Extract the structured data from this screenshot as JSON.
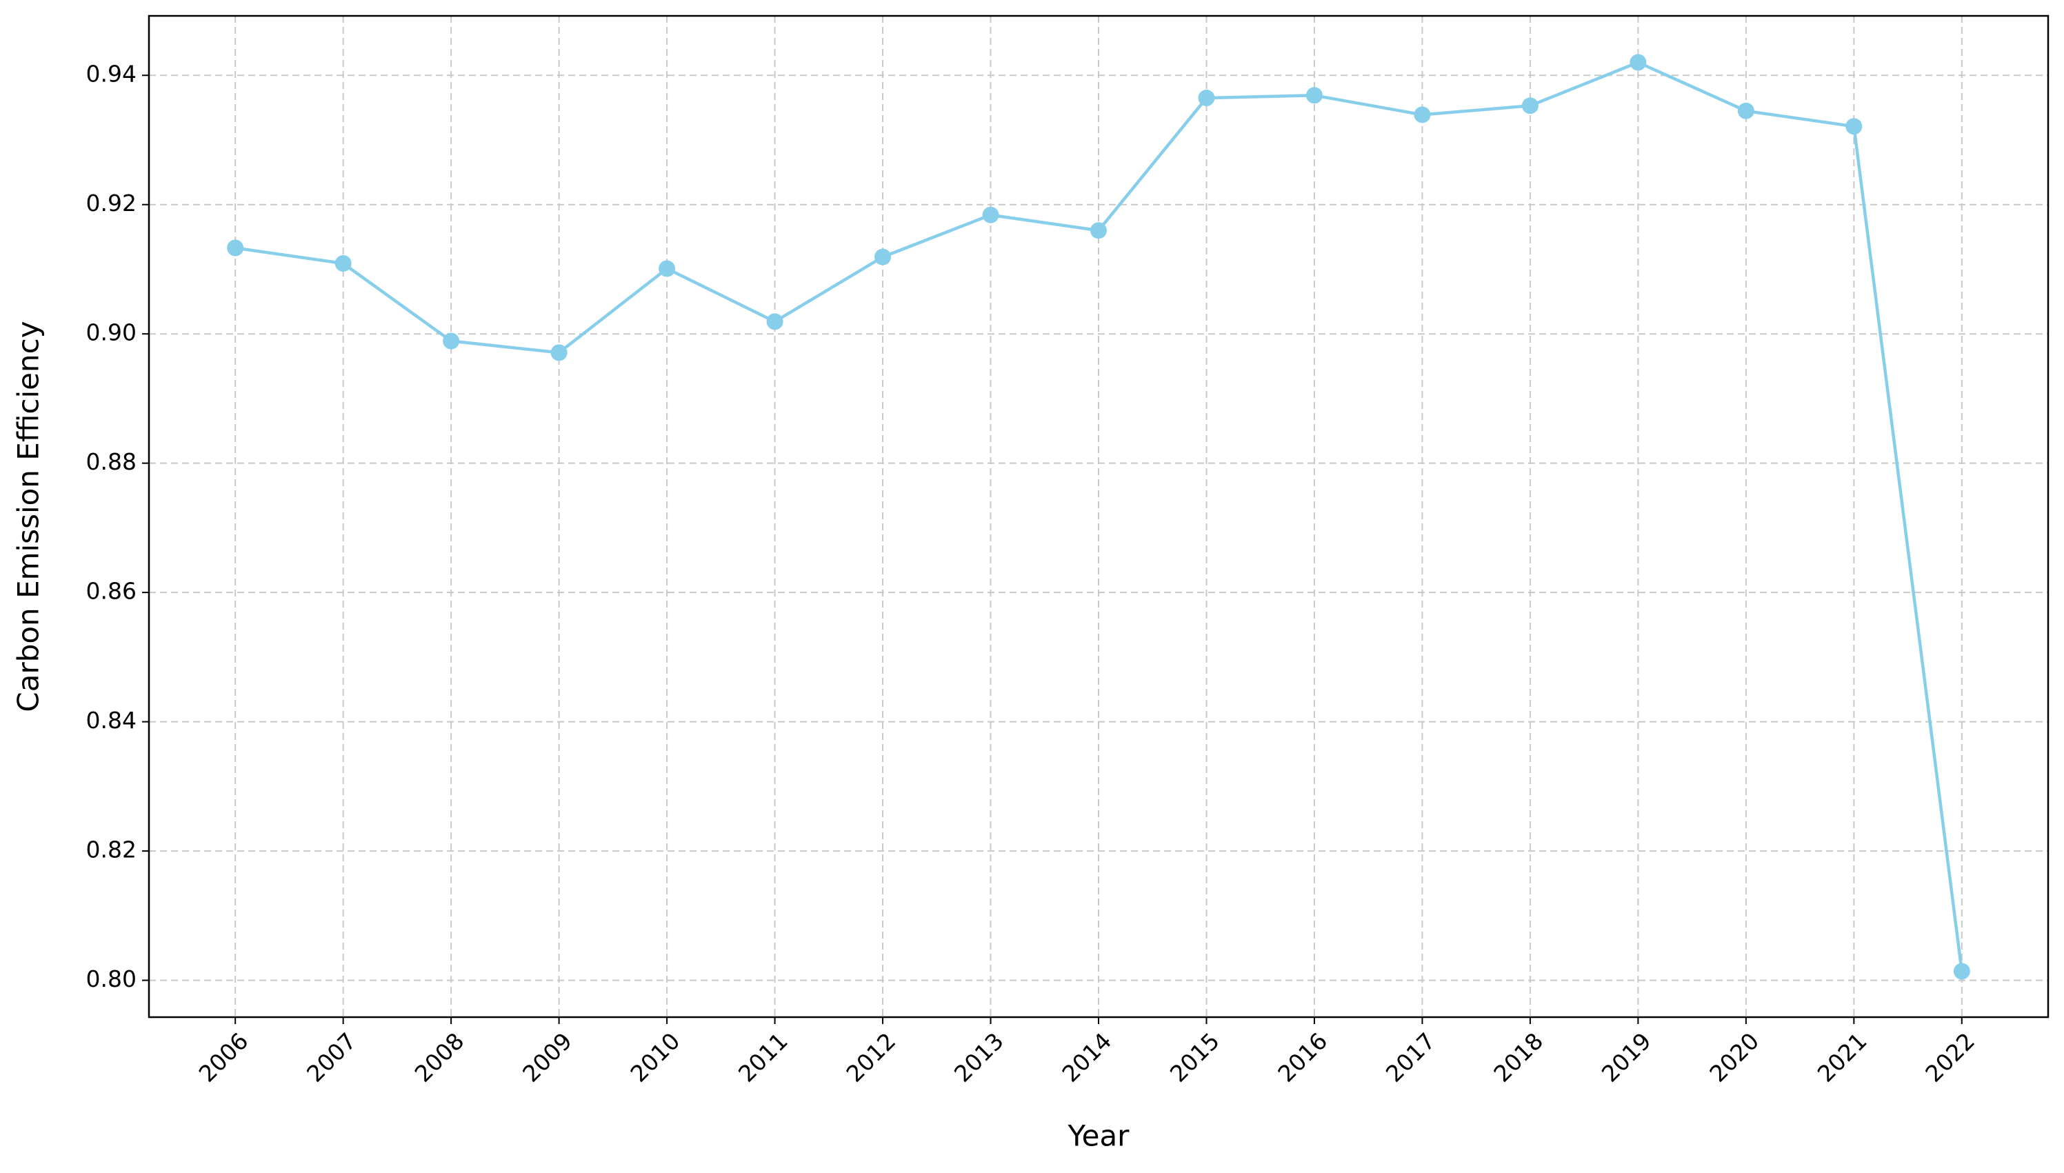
{
  "chart_data": {
    "type": "line",
    "x_label": "Year",
    "y_label": "Carbon Emission Efficiency",
    "x": [
      2006,
      2007,
      2008,
      2009,
      2010,
      2011,
      2012,
      2013,
      2014,
      2015,
      2016,
      2017,
      2018,
      2019,
      2020,
      2021,
      2022
    ],
    "series": [
      {
        "color": "#87ceeb",
        "values": [
          0.9133,
          0.9109,
          0.8989,
          0.8971,
          0.9101,
          0.9019,
          0.9119,
          0.9184,
          0.916,
          0.9365,
          0.9369,
          0.9339,
          0.9353,
          0.942,
          0.9345,
          0.9321,
          0.8014
        ]
      }
    ],
    "xlim": [
      2005.2,
      2022.8
    ],
    "xticks": [
      2006,
      2007,
      2008,
      2009,
      2010,
      2011,
      2012,
      2013,
      2014,
      2015,
      2016,
      2017,
      2018,
      2019,
      2020,
      2021,
      2022
    ],
    "ylim": [
      0.7943,
      0.9492
    ],
    "yticks": [
      {
        "value": 0.8,
        "label": "0.80"
      },
      0.82,
      0.84,
      0.86,
      0.88,
      {
        "value": 0.9,
        "label": "0.90"
      },
      0.92,
      0.94
    ],
    "grid": true
  }
}
